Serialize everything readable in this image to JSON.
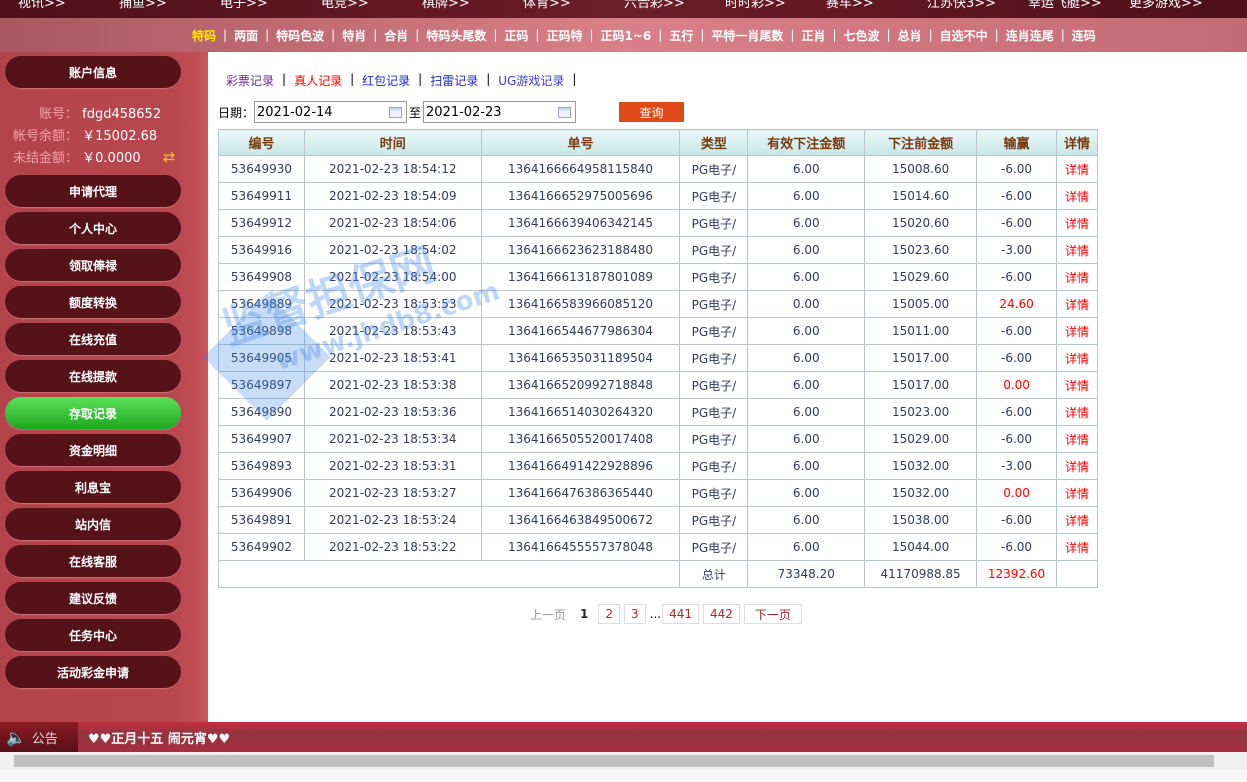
{
  "top_nav": [
    "视讯>>",
    "捕鱼>>",
    "电子>>",
    "电竞>>",
    "棋牌>>",
    "体育>>",
    "六合彩>>",
    "时时彩>>",
    "赛车>>",
    "江苏快3>>",
    "幸运飞艇>>",
    "更多游戏>>"
  ],
  "sub_nav": {
    "active": 0,
    "items": [
      "特码",
      "两面",
      "特码色波",
      "特肖",
      "合肖",
      "特码头尾数",
      "正码",
      "正码特",
      "正码1~6",
      "五行",
      "平特一肖尾数",
      "正肖",
      "七色波",
      "总肖",
      "自选不中",
      "连肖连尾",
      "连码"
    ]
  },
  "sidebar": {
    "account_title": "账户信息",
    "account_label": "账号：",
    "account": "fdgd458652",
    "balance_label": "帐号余额：",
    "balance": "￥15002.68",
    "unsettled_label": "未结金额：",
    "unsettled": "￥0.0000",
    "active": 6,
    "items": [
      "申请代理",
      "个人中心",
      "领取俸禄",
      "额度转换",
      "在线充值",
      "在线提款",
      "存取记录",
      "资金明细",
      "利息宝",
      "站内信",
      "在线客服",
      "建议反馈",
      "任务中心",
      "活动彩金申请"
    ]
  },
  "tabs": [
    {
      "label": "彩票记录",
      "color": "#6a2a8a"
    },
    {
      "label": "真人记录",
      "color": "#ff0000"
    },
    {
      "label": "红包记录",
      "color": "#2323d0"
    },
    {
      "label": "扫雷记录",
      "color": "#2323d0"
    },
    {
      "label": "UG游戏记录",
      "color": "#3a3ad0"
    }
  ],
  "filter": {
    "date_label": "日期：",
    "from": "2021-02-14",
    "to_label": "至",
    "to": "2021-02-23",
    "query": "查询"
  },
  "table": {
    "headers": [
      "编号",
      "时间",
      "单号",
      "类型",
      "有效下注金额",
      "下注前金额",
      "输赢",
      "详情"
    ],
    "rows": [
      [
        "53649930",
        "2021-02-23 18:54:12",
        "1364166664958115840",
        "PG电子/",
        "6.00",
        "15008.60",
        "-6.00",
        "详情"
      ],
      [
        "53649911",
        "2021-02-23 18:54:09",
        "1364166652975005696",
        "PG电子/",
        "6.00",
        "15014.60",
        "-6.00",
        "详情"
      ],
      [
        "53649912",
        "2021-02-23 18:54:06",
        "1364166639406342145",
        "PG电子/",
        "6.00",
        "15020.60",
        "-6.00",
        "详情"
      ],
      [
        "53649916",
        "2021-02-23 18:54:02",
        "1364166623623188480",
        "PG电子/",
        "6.00",
        "15023.60",
        "-3.00",
        "详情"
      ],
      [
        "53649908",
        "2021-02-23 18:54:00",
        "1364166613187801089",
        "PG电子/",
        "6.00",
        "15029.60",
        "-6.00",
        "详情"
      ],
      [
        "53649889",
        "2021-02-23 18:53:53",
        "1364166583966085120",
        "PG电子/",
        "0.00",
        "15005.00",
        "24.60",
        "详情"
      ],
      [
        "53649898",
        "2021-02-23 18:53:43",
        "1364166544677986304",
        "PG电子/",
        "6.00",
        "15011.00",
        "-6.00",
        "详情"
      ],
      [
        "53649905",
        "2021-02-23 18:53:41",
        "1364166535031189504",
        "PG电子/",
        "6.00",
        "15017.00",
        "-6.00",
        "详情"
      ],
      [
        "53649897",
        "2021-02-23 18:53:38",
        "1364166520992718848",
        "PG电子/",
        "6.00",
        "15017.00",
        "0.00",
        "详情"
      ],
      [
        "53649890",
        "2021-02-23 18:53:36",
        "1364166514030264320",
        "PG电子/",
        "6.00",
        "15023.00",
        "-6.00",
        "详情"
      ],
      [
        "53649907",
        "2021-02-23 18:53:34",
        "1364166505520017408",
        "PG电子/",
        "6.00",
        "15029.00",
        "-6.00",
        "详情"
      ],
      [
        "53649893",
        "2021-02-23 18:53:31",
        "1364166491422928896",
        "PG电子/",
        "6.00",
        "15032.00",
        "-3.00",
        "详情"
      ],
      [
        "53649906",
        "2021-02-23 18:53:27",
        "1364166476386365440",
        "PG电子/",
        "6.00",
        "15032.00",
        "0.00",
        "详情"
      ],
      [
        "53649891",
        "2021-02-23 18:53:24",
        "1364166463849500672",
        "PG电子/",
        "6.00",
        "15038.00",
        "-6.00",
        "详情"
      ],
      [
        "53649902",
        "2021-02-23 18:53:22",
        "1364166455557378048",
        "PG电子/",
        "6.00",
        "15044.00",
        "-6.00",
        "详情"
      ]
    ],
    "total": {
      "label": "总计",
      "valid_bet": "73348.20",
      "before": "41170988.85",
      "winloss": "12392.60"
    }
  },
  "pager": {
    "prev": "上一页",
    "current": "1",
    "pages": [
      "2",
      "3"
    ],
    "ellipsis": "...",
    "last_pages": [
      "441",
      "442"
    ],
    "next": "下一页"
  },
  "watermark": {
    "text": "监督担保网",
    "url": "www.jhdb8.com"
  },
  "notice": {
    "label": "公告",
    "text": "♥♥正月十五 闹元宵♥♥"
  }
}
